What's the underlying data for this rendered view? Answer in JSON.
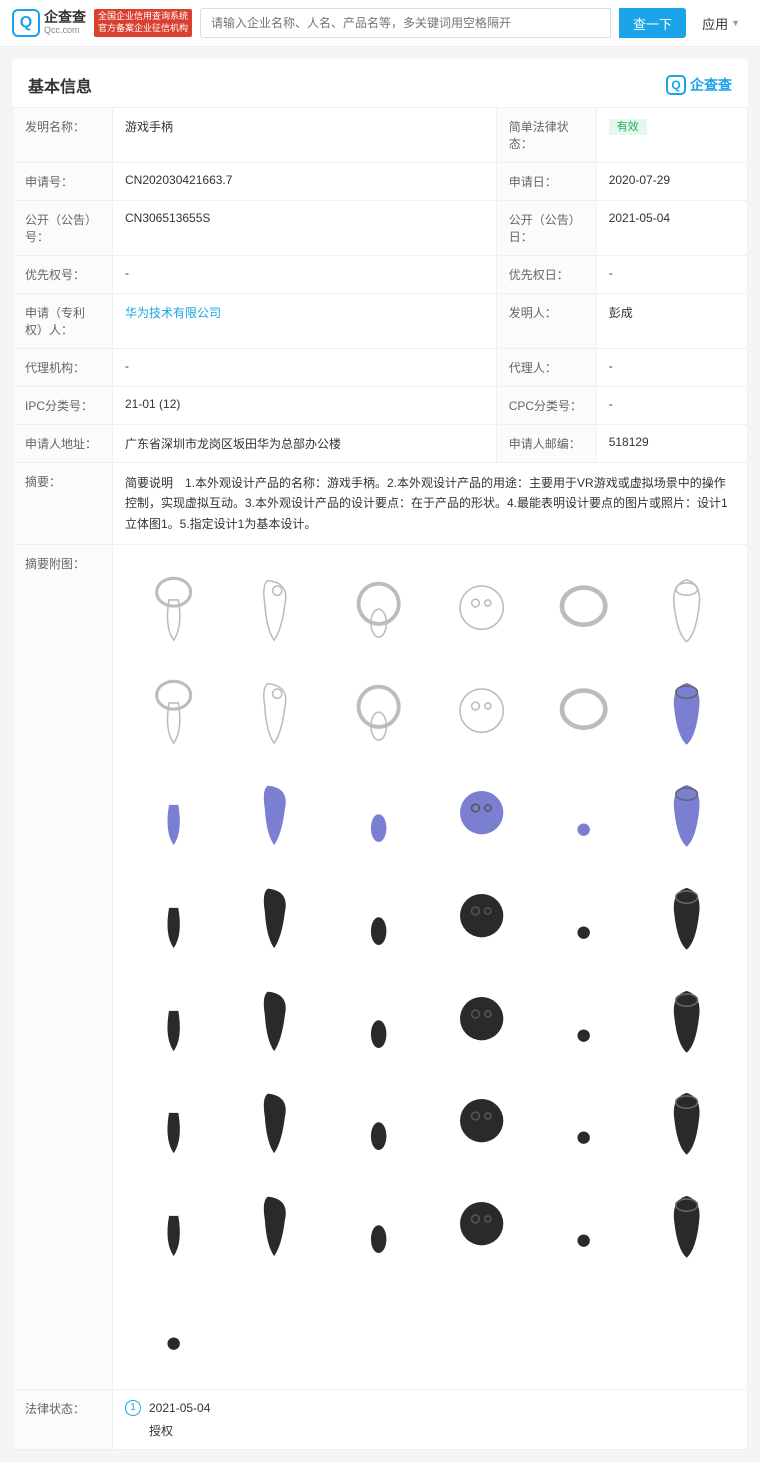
{
  "header": {
    "logo_cn": "企查查",
    "logo_en": "Qcc.com",
    "logo_letter": "Q",
    "red_badge_line1": "全国企业信用查询系统",
    "red_badge_line2": "官方备案企业征信机构",
    "search_placeholder": "请输入企业名称、人名、产品名等，多关键词用空格隔开",
    "search_btn": "查一下",
    "nav_app": "应用"
  },
  "card": {
    "title": "基本信息",
    "watermark": "企查查"
  },
  "fields": {
    "invention_name_label": "发明名称：",
    "invention_name": "游戏手柄",
    "legal_status_label": "简单法律状态：",
    "legal_status": "有效",
    "app_no_label": "申请号：",
    "app_no": "CN202030421663.7",
    "app_date_label": "申请日：",
    "app_date": "2020-07-29",
    "pub_no_label": "公开（公告）号：",
    "pub_no": "CN306513655S",
    "pub_date_label": "公开（公告）日：",
    "pub_date": "2021-05-04",
    "priority_no_label": "优先权号：",
    "priority_no": "-",
    "priority_date_label": "优先权日：",
    "priority_date": "-",
    "applicant_label": "申请（专利权）人：",
    "applicant": "华为技术有限公司",
    "inventor_label": "发明人：",
    "inventor": "彭成",
    "agency_label": "代理机构：",
    "agency": "-",
    "agent_label": "代理人：",
    "agent": "-",
    "ipc_label": "IPC分类号：",
    "ipc": "21-01 (12)",
    "cpc_label": "CPC分类号：",
    "cpc": "-",
    "addr_label": "申请人地址：",
    "addr": "广东省深圳市龙岗区坂田华为总部办公楼",
    "zip_label": "申请人邮编：",
    "zip": "518129",
    "abstract_label": "摘要：",
    "abstract": "简要说明　1.本外观设计产品的名称：游戏手柄。2.本外观设计产品的用途：主要用于VR游戏或虚拟场景中的操作控制，实现虚拟互动。3.本外观设计产品的设计要点：在于产品的形状。4.最能表明设计要点的图片或照片：设计1立体图1。5.指定设计1为基本设计。",
    "figure_label": "摘要附图：",
    "legal_label": "法律状态：",
    "legal_date": "2021-05-04",
    "legal_event": "授权",
    "legal_num": "1"
  },
  "colors": {
    "outline": "#bcbcbc",
    "purple": "#7a7fd1",
    "black": "#2a2a2a"
  }
}
